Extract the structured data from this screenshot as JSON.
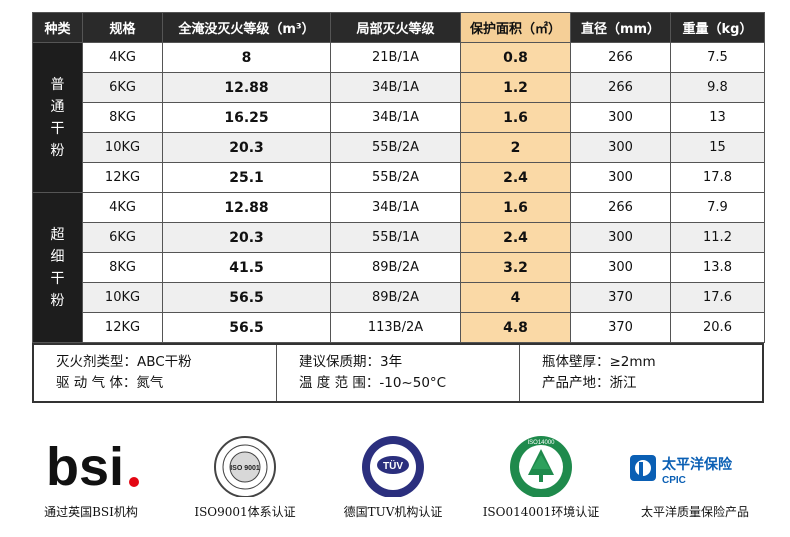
{
  "table": {
    "headers": {
      "type": "种类",
      "spec": "规格",
      "total_flood": "全淹没灭火等级（m³）",
      "local_level": "局部灭火等级",
      "protect_area": "保护面积（㎡）",
      "diameter": "直径（mm）",
      "weight": "重量（kg）"
    },
    "groups": [
      {
        "name_lines": [
          "普",
          "通",
          "干",
          "粉"
        ],
        "rows": [
          {
            "spec": "4KG",
            "total": "8",
            "local": "21B/1A",
            "area": "0.8",
            "diameter": "266",
            "weight": "7.5"
          },
          {
            "spec": "6KG",
            "total": "12.88",
            "local": "34B/1A",
            "area": "1.2",
            "diameter": "266",
            "weight": "9.8"
          },
          {
            "spec": "8KG",
            "total": "16.25",
            "local": "34B/1A",
            "area": "1.6",
            "diameter": "300",
            "weight": "13"
          },
          {
            "spec": "10KG",
            "total": "20.3",
            "local": "55B/2A",
            "area": "2",
            "diameter": "300",
            "weight": "15"
          },
          {
            "spec": "12KG",
            "total": "25.1",
            "local": "55B/2A",
            "area": "2.4",
            "diameter": "300",
            "weight": "17.8"
          }
        ]
      },
      {
        "name_lines": [
          "超",
          "细",
          "干",
          "粉"
        ],
        "rows": [
          {
            "spec": "4KG",
            "total": "12.88",
            "local": "34B/1A",
            "area": "1.6",
            "diameter": "266",
            "weight": "7.9"
          },
          {
            "spec": "6KG",
            "total": "20.3",
            "local": "55B/1A",
            "area": "2.4",
            "diameter": "300",
            "weight": "11.2"
          },
          {
            "spec": "8KG",
            "total": "41.5",
            "local": "89B/2A",
            "area": "3.2",
            "diameter": "300",
            "weight": "13.8"
          },
          {
            "spec": "10KG",
            "total": "56.5",
            "local": "89B/2A",
            "area": "4",
            "diameter": "370",
            "weight": "17.6"
          },
          {
            "spec": "12KG",
            "total": "56.5",
            "local": "113B/2A",
            "area": "4.8",
            "diameter": "370",
            "weight": "20.6"
          }
        ]
      }
    ]
  },
  "notes": {
    "col1": [
      "灭火剂类型：ABC干粉",
      "驱 动 气 体：氮气"
    ],
    "col2": [
      "建议保质期：3年",
      "温 度 范 围：-10~50°C"
    ],
    "col3": [
      "瓶体壁厚：≥2mm",
      "产品产地：浙江"
    ]
  },
  "logos": {
    "bsi": {
      "mark": "bsi",
      "caption": "通过英国BSI机构"
    },
    "iso9001": {
      "mark": "ISO 9001",
      "caption": "ISO9001体系认证"
    },
    "tuv": {
      "mark": "TÜV",
      "caption": "德国TUV机构认证"
    },
    "iso14001": {
      "mark": "ISO14000",
      "caption": "ISO014001环境认证"
    },
    "cpic": {
      "name": "太平洋保险",
      "abbr": "CPIC",
      "caption": "太平洋质量保险产品"
    }
  },
  "colors": {
    "header_bg": "#2a2a2a",
    "highlight": "#fad9a6",
    "bsi_dot": "#e30613",
    "tuv_blue": "#2b2f7e",
    "iso14001_green": "#1f8a4c",
    "cpic_blue": "#0a5fb4"
  }
}
